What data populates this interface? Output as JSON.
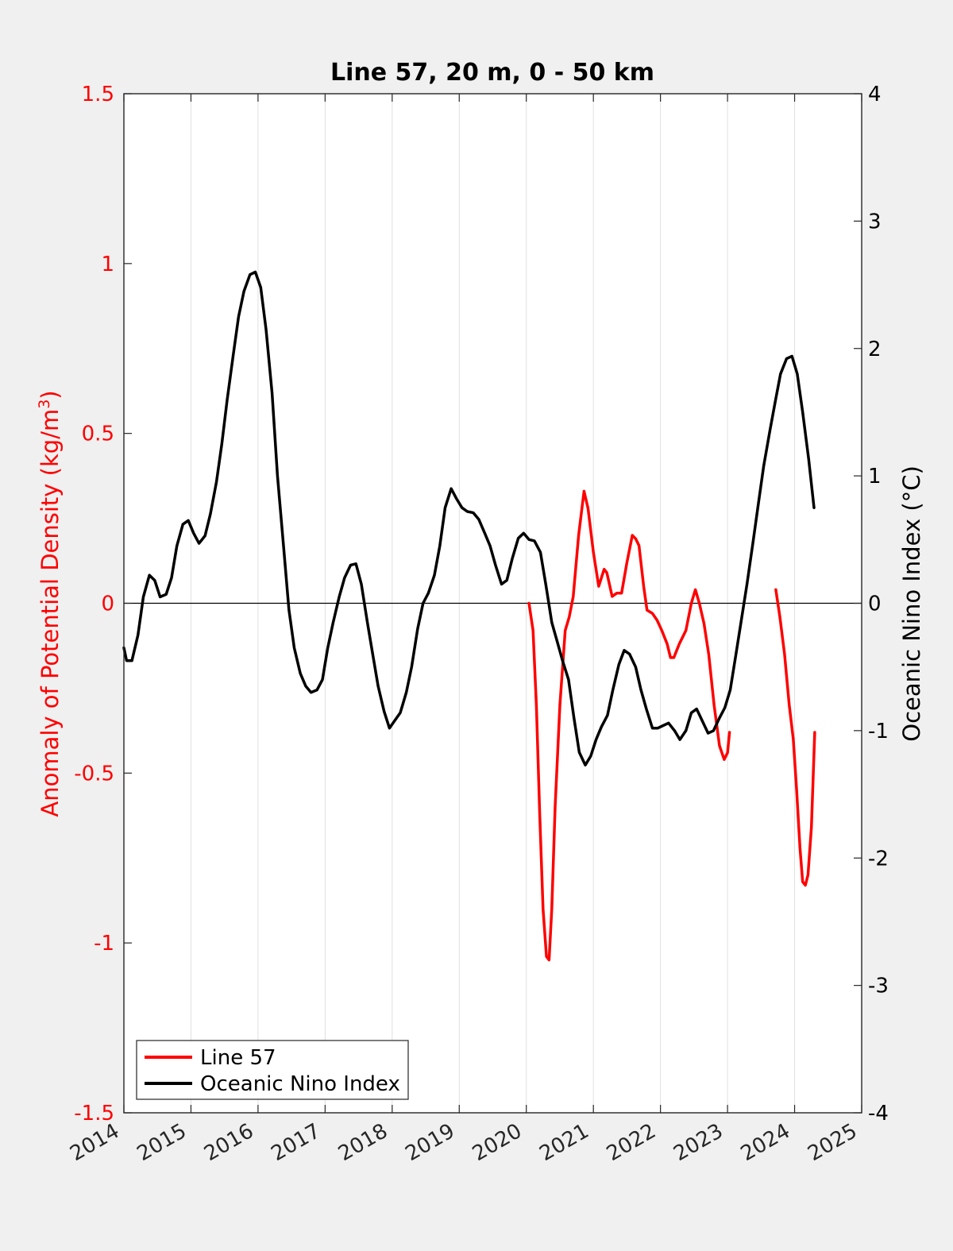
{
  "chart_data": {
    "type": "line",
    "title": "Line 57, 20 m, 0 - 50 km",
    "xlim": [
      2014,
      2025
    ],
    "x_ticks": [
      "2014",
      "2015",
      "2016",
      "2017",
      "2018",
      "2019",
      "2020",
      "2021",
      "2022",
      "2023",
      "2024",
      "2025"
    ],
    "grid": "vertical",
    "legend_position": "bottom-left",
    "zero_line": true,
    "left_axis": {
      "label_main": "Anomaly of Potential Density (kg/m",
      "label_sup": "3",
      "label_end": ")",
      "ylim": [
        -1.5,
        1.5
      ],
      "ticks": [
        "-1.5",
        "-1",
        "-0.5",
        "0",
        "0.5",
        "1",
        "1.5"
      ],
      "color": "#ff0000"
    },
    "right_axis": {
      "label": "Oceanic Nino Index (°C)",
      "ylim": [
        -4,
        4
      ],
      "ticks": [
        "-4",
        "-3",
        "-2",
        "-1",
        "0",
        "1",
        "2",
        "3",
        "4"
      ],
      "color": "#000000"
    },
    "series": [
      {
        "name": "Line 57",
        "axis": "left",
        "color": "#ff0000",
        "segments": [
          [
            [
              2020.04,
              0.0
            ],
            [
              2020.1,
              -0.08
            ],
            [
              2020.15,
              -0.3
            ],
            [
              2020.2,
              -0.62
            ],
            [
              2020.25,
              -0.9
            ],
            [
              2020.3,
              -1.04
            ],
            [
              2020.34,
              -1.05
            ],
            [
              2020.38,
              -0.9
            ],
            [
              2020.43,
              -0.6
            ],
            [
              2020.5,
              -0.3
            ],
            [
              2020.58,
              -0.08
            ],
            [
              2020.64,
              -0.04
            ],
            [
              2020.7,
              0.02
            ],
            [
              2020.78,
              0.2
            ],
            [
              2020.86,
              0.33
            ],
            [
              2020.92,
              0.28
            ],
            [
              2021.0,
              0.15
            ],
            [
              2021.08,
              0.05
            ],
            [
              2021.16,
              0.1
            ],
            [
              2021.2,
              0.09
            ],
            [
              2021.28,
              0.02
            ],
            [
              2021.35,
              0.03
            ],
            [
              2021.42,
              0.03
            ],
            [
              2021.5,
              0.12
            ],
            [
              2021.58,
              0.2
            ],
            [
              2021.63,
              0.19
            ],
            [
              2021.68,
              0.17
            ],
            [
              2021.75,
              0.05
            ],
            [
              2021.8,
              -0.02
            ],
            [
              2021.88,
              -0.03
            ],
            [
              2021.95,
              -0.05
            ],
            [
              2022.02,
              -0.08
            ],
            [
              2022.1,
              -0.12
            ],
            [
              2022.15,
              -0.16
            ],
            [
              2022.2,
              -0.16
            ],
            [
              2022.28,
              -0.12
            ],
            [
              2022.38,
              -0.08
            ],
            [
              2022.46,
              0.0
            ],
            [
              2022.52,
              0.04
            ],
            [
              2022.58,
              0.0
            ],
            [
              2022.65,
              -0.06
            ],
            [
              2022.72,
              -0.15
            ],
            [
              2022.8,
              -0.3
            ],
            [
              2022.88,
              -0.42
            ],
            [
              2022.95,
              -0.46
            ],
            [
              2023.0,
              -0.44
            ],
            [
              2023.03,
              -0.38
            ]
          ],
          [
            [
              2023.72,
              0.04
            ],
            [
              2023.78,
              -0.04
            ],
            [
              2023.85,
              -0.15
            ],
            [
              2023.92,
              -0.3
            ],
            [
              2023.98,
              -0.4
            ],
            [
              2024.03,
              -0.55
            ],
            [
              2024.08,
              -0.72
            ],
            [
              2024.12,
              -0.82
            ],
            [
              2024.16,
              -0.83
            ],
            [
              2024.2,
              -0.8
            ],
            [
              2024.25,
              -0.66
            ],
            [
              2024.3,
              -0.38
            ]
          ]
        ]
      },
      {
        "name": "Oceanic Nino Index",
        "axis": "right",
        "color": "#000000",
        "segments": [
          [
            [
              2014.0,
              -0.35
            ],
            [
              2014.04,
              -0.45
            ],
            [
              2014.12,
              -0.45
            ],
            [
              2014.21,
              -0.25
            ],
            [
              2014.29,
              0.05
            ],
            [
              2014.38,
              0.22
            ],
            [
              2014.46,
              0.18
            ],
            [
              2014.54,
              0.05
            ],
            [
              2014.63,
              0.07
            ],
            [
              2014.71,
              0.2
            ],
            [
              2014.79,
              0.45
            ],
            [
              2014.88,
              0.62
            ],
            [
              2014.96,
              0.65
            ],
            [
              2015.04,
              0.55
            ],
            [
              2015.12,
              0.47
            ],
            [
              2015.21,
              0.53
            ],
            [
              2015.29,
              0.7
            ],
            [
              2015.38,
              0.95
            ],
            [
              2015.46,
              1.25
            ],
            [
              2015.54,
              1.6
            ],
            [
              2015.63,
              1.95
            ],
            [
              2015.71,
              2.25
            ],
            [
              2015.79,
              2.45
            ],
            [
              2015.88,
              2.58
            ],
            [
              2015.96,
              2.6
            ],
            [
              2016.04,
              2.48
            ],
            [
              2016.12,
              2.15
            ],
            [
              2016.21,
              1.65
            ],
            [
              2016.29,
              1.0
            ],
            [
              2016.38,
              0.45
            ],
            [
              2016.46,
              -0.05
            ],
            [
              2016.54,
              -0.35
            ],
            [
              2016.63,
              -0.55
            ],
            [
              2016.71,
              -0.65
            ],
            [
              2016.79,
              -0.7
            ],
            [
              2016.88,
              -0.68
            ],
            [
              2016.96,
              -0.6
            ],
            [
              2017.04,
              -0.35
            ],
            [
              2017.12,
              -0.15
            ],
            [
              2017.21,
              0.05
            ],
            [
              2017.29,
              0.2
            ],
            [
              2017.38,
              0.3
            ],
            [
              2017.46,
              0.31
            ],
            [
              2017.54,
              0.15
            ],
            [
              2017.63,
              -0.15
            ],
            [
              2017.71,
              -0.4
            ],
            [
              2017.79,
              -0.65
            ],
            [
              2017.88,
              -0.85
            ],
            [
              2017.96,
              -0.98
            ],
            [
              2018.04,
              -0.92
            ],
            [
              2018.12,
              -0.86
            ],
            [
              2018.21,
              -0.7
            ],
            [
              2018.29,
              -0.5
            ],
            [
              2018.38,
              -0.2
            ],
            [
              2018.46,
              0.0
            ],
            [
              2018.54,
              0.08
            ],
            [
              2018.63,
              0.22
            ],
            [
              2018.71,
              0.45
            ],
            [
              2018.79,
              0.75
            ],
            [
              2018.88,
              0.9
            ],
            [
              2018.96,
              0.82
            ],
            [
              2019.04,
              0.75
            ],
            [
              2019.12,
              0.72
            ],
            [
              2019.21,
              0.71
            ],
            [
              2019.29,
              0.66
            ],
            [
              2019.38,
              0.55
            ],
            [
              2019.46,
              0.45
            ],
            [
              2019.54,
              0.3
            ],
            [
              2019.63,
              0.15
            ],
            [
              2019.71,
              0.18
            ],
            [
              2019.79,
              0.35
            ],
            [
              2019.88,
              0.51
            ],
            [
              2019.96,
              0.55
            ],
            [
              2020.04,
              0.5
            ],
            [
              2020.12,
              0.49
            ],
            [
              2020.21,
              0.4
            ],
            [
              2020.29,
              0.15
            ],
            [
              2020.38,
              -0.15
            ],
            [
              2020.46,
              -0.3
            ],
            [
              2020.54,
              -0.45
            ],
            [
              2020.63,
              -0.6
            ],
            [
              2020.71,
              -0.9
            ],
            [
              2020.79,
              -1.17
            ],
            [
              2020.88,
              -1.27
            ],
            [
              2020.96,
              -1.2
            ],
            [
              2021.04,
              -1.07
            ],
            [
              2021.12,
              -0.97
            ],
            [
              2021.21,
              -0.88
            ],
            [
              2021.29,
              -0.68
            ],
            [
              2021.38,
              -0.48
            ],
            [
              2021.46,
              -0.37
            ],
            [
              2021.54,
              -0.4
            ],
            [
              2021.63,
              -0.5
            ],
            [
              2021.71,
              -0.68
            ],
            [
              2021.79,
              -0.83
            ],
            [
              2021.88,
              -0.98
            ],
            [
              2021.96,
              -0.98
            ],
            [
              2022.04,
              -0.96
            ],
            [
              2022.12,
              -0.94
            ],
            [
              2022.21,
              -1.0
            ],
            [
              2022.29,
              -1.07
            ],
            [
              2022.38,
              -1.0
            ],
            [
              2022.46,
              -0.86
            ],
            [
              2022.54,
              -0.83
            ],
            [
              2022.63,
              -0.93
            ],
            [
              2022.71,
              -1.02
            ],
            [
              2022.79,
              -1.0
            ],
            [
              2022.88,
              -0.9
            ],
            [
              2022.96,
              -0.82
            ],
            [
              2023.04,
              -0.68
            ],
            [
              2023.12,
              -0.42
            ],
            [
              2023.21,
              -0.12
            ],
            [
              2023.29,
              0.15
            ],
            [
              2023.38,
              0.48
            ],
            [
              2023.46,
              0.78
            ],
            [
              2023.54,
              1.08
            ],
            [
              2023.63,
              1.35
            ],
            [
              2023.71,
              1.58
            ],
            [
              2023.79,
              1.8
            ],
            [
              2023.88,
              1.92
            ],
            [
              2023.96,
              1.94
            ],
            [
              2024.04,
              1.8
            ],
            [
              2024.12,
              1.5
            ],
            [
              2024.21,
              1.13
            ],
            [
              2024.29,
              0.75
            ]
          ]
        ]
      }
    ]
  }
}
